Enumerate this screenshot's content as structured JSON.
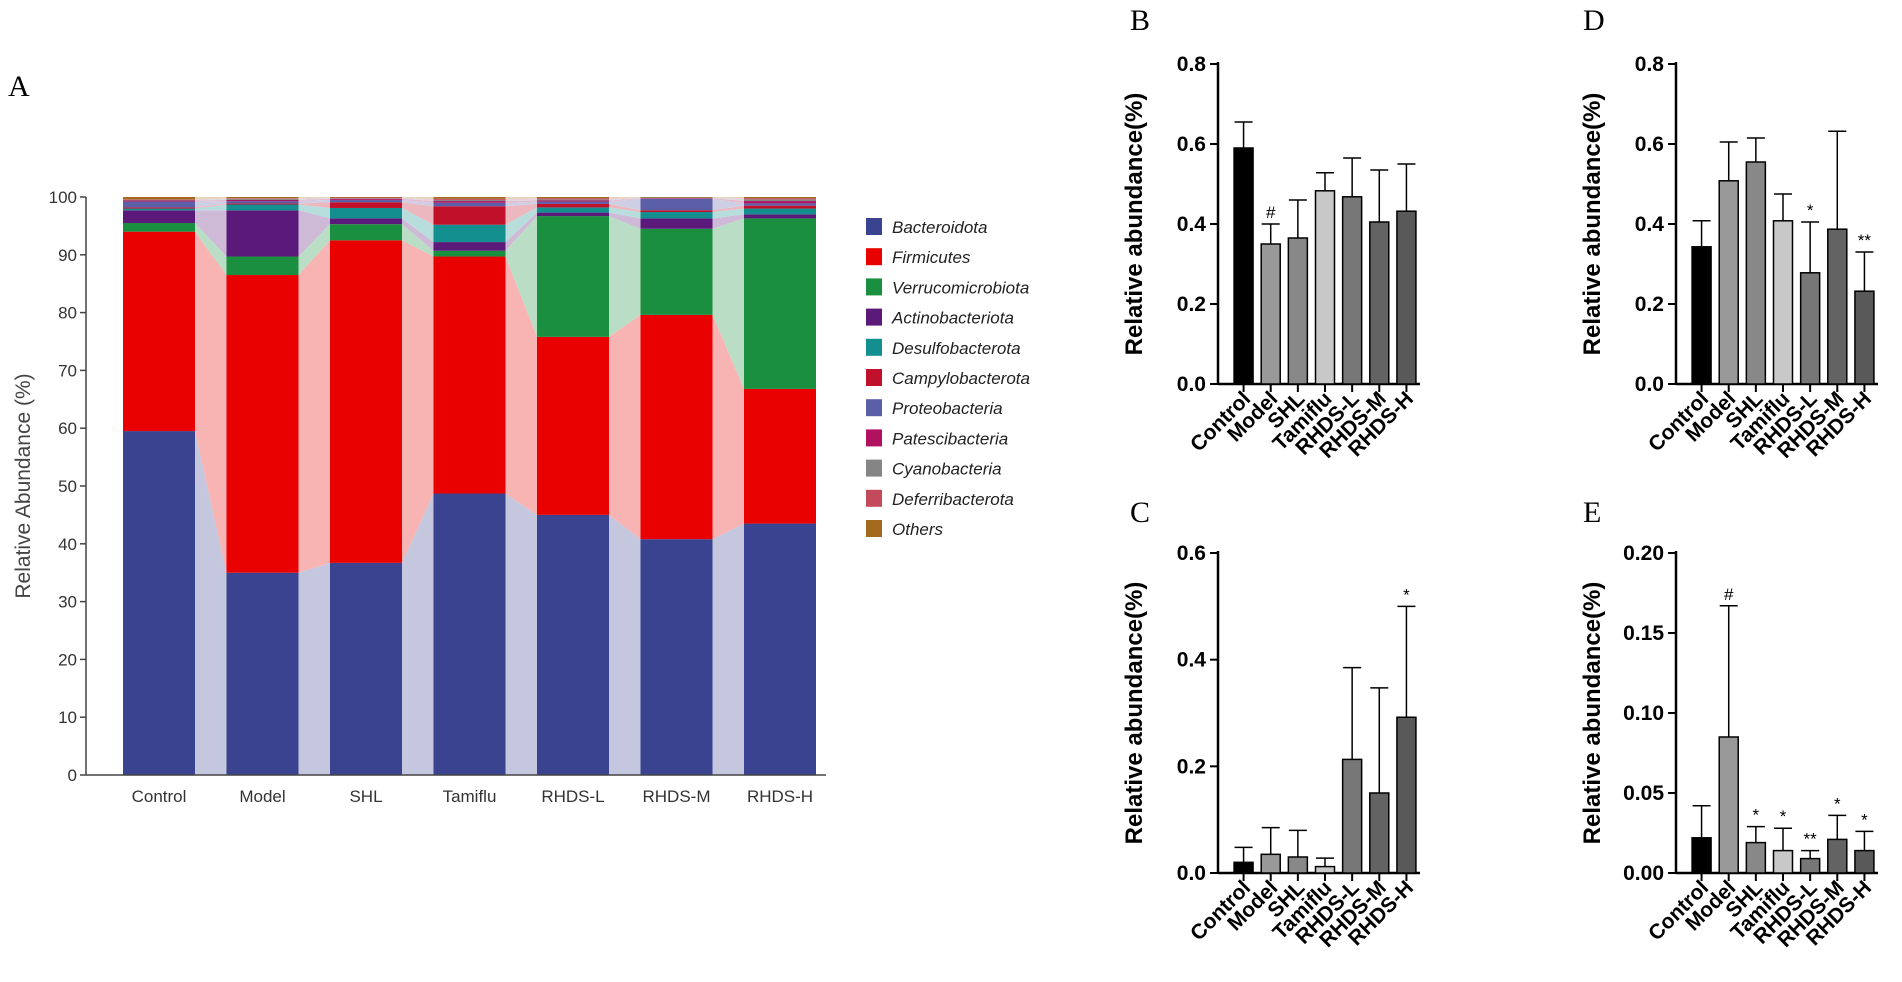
{
  "figure": {
    "panel_labels": [
      "A",
      "B",
      "C",
      "D",
      "E"
    ]
  },
  "chart_data": [
    {
      "id": "A",
      "type": "bar",
      "stacked": true,
      "title": "",
      "xlabel": "",
      "ylabel": "Relative Abundance (%)",
      "ylim": [
        0,
        100
      ],
      "yticks": [
        "0",
        "10",
        "20",
        "30",
        "40",
        "50",
        "60",
        "70",
        "80",
        "90",
        "100"
      ],
      "categories": [
        "Control",
        "Model",
        "SHL",
        "Tamiflu",
        "RHDS-L",
        "RHDS-M",
        "RHDS-H"
      ],
      "legend_position": "right",
      "series": [
        {
          "name": "Bacteroidota",
          "color": "#39438f",
          "values": [
            59.5,
            35.0,
            36.7,
            48.7,
            45.0,
            40.8,
            43.5
          ]
        },
        {
          "name": "Firmicutes",
          "color": "#e90000",
          "values": [
            34.5,
            51.5,
            55.8,
            41.0,
            30.8,
            38.8,
            23.3
          ]
        },
        {
          "name": "Verrucomicrobiota",
          "color": "#1a8f3f",
          "values": [
            1.5,
            3.2,
            2.8,
            1.0,
            20.9,
            14.9,
            29.5
          ]
        },
        {
          "name": "Actinobacteriota",
          "color": "#5b1a7a",
          "values": [
            2.2,
            8.0,
            1.0,
            1.5,
            0.6,
            1.8,
            0.7
          ]
        },
        {
          "name": "Desulfobacterota",
          "color": "#138f8f",
          "values": [
            0.3,
            1.0,
            1.8,
            3.0,
            0.9,
            1.1,
            1.0
          ]
        },
        {
          "name": "Campylobacterota",
          "color": "#c0102a",
          "values": [
            0.2,
            0.2,
            1.0,
            3.2,
            0.6,
            0.3,
            0.5
          ]
        },
        {
          "name": "Proteobacteria",
          "color": "#5b5fa8",
          "values": [
            1.0,
            0.4,
            0.4,
            0.6,
            0.4,
            2.0,
            0.4
          ]
        },
        {
          "name": "Patescibacteria",
          "color": "#b0125f",
          "values": [
            0.2,
            0.2,
            0.2,
            0.3,
            0.2,
            0.1,
            0.4
          ]
        },
        {
          "name": "Cyanobacteria",
          "color": "#858585",
          "values": [
            0.1,
            0.2,
            0.1,
            0.2,
            0.2,
            0.1,
            0.3
          ]
        },
        {
          "name": "Deferribacterota",
          "color": "#c34a5a",
          "values": [
            0.1,
            0.1,
            0.1,
            0.2,
            0.2,
            0.0,
            0.2
          ]
        },
        {
          "name": "Others",
          "color": "#a3691f",
          "values": [
            0.4,
            0.2,
            0.1,
            0.3,
            0.2,
            0.1,
            0.2
          ]
        }
      ]
    },
    {
      "id": "B",
      "type": "bar",
      "title": "",
      "xlabel": "",
      "ylabel": "Relative abundance(%)",
      "ylim": [
        0,
        0.8
      ],
      "yticks": [
        "0.0",
        "0.2",
        "0.4",
        "0.6",
        "0.8"
      ],
      "categories": [
        "Control",
        "Model",
        "SHL",
        "Tamiflu",
        "RHDS-L",
        "RHDS-M",
        "RHDS-H"
      ],
      "values": [
        0.59,
        0.35,
        0.365,
        0.483,
        0.468,
        0.405,
        0.432
      ],
      "errors": [
        0.065,
        0.05,
        0.095,
        0.045,
        0.097,
        0.13,
        0.118
      ],
      "significance": [
        "",
        "#",
        "",
        "",
        "",
        "",
        ""
      ],
      "colors": [
        "#000000",
        "#999999",
        "#888888",
        "#c8c8c8",
        "#777777",
        "#636363",
        "#595959"
      ]
    },
    {
      "id": "C",
      "type": "bar",
      "title": "",
      "xlabel": "",
      "ylabel": "Relative abundance(%)",
      "ylim": [
        0,
        0.6
      ],
      "yticks": [
        "0.0",
        "0.2",
        "0.4",
        "0.6"
      ],
      "categories": [
        "Control",
        "Model",
        "SHL",
        "Tamiflu",
        "RHDS-L",
        "RHDS-M",
        "RHDS-H"
      ],
      "values": [
        0.02,
        0.035,
        0.03,
        0.012,
        0.213,
        0.15,
        0.292
      ],
      "errors": [
        0.028,
        0.05,
        0.05,
        0.016,
        0.172,
        0.197,
        0.208
      ],
      "significance": [
        "",
        "",
        "",
        "",
        "",
        "",
        "*"
      ],
      "colors": [
        "#000000",
        "#999999",
        "#888888",
        "#c8c8c8",
        "#777777",
        "#636363",
        "#595959"
      ]
    },
    {
      "id": "D",
      "type": "bar",
      "title": "",
      "xlabel": "",
      "ylabel": "Relative abundance(%)",
      "ylim": [
        0,
        0.8
      ],
      "yticks": [
        "0.0",
        "0.2",
        "0.4",
        "0.6",
        "0.8"
      ],
      "categories": [
        "Control",
        "Model",
        "SHL",
        "Tamiflu",
        "RHDS-L",
        "RHDS-M",
        "RHDS-H"
      ],
      "values": [
        0.343,
        0.508,
        0.555,
        0.408,
        0.278,
        0.387,
        0.232
      ],
      "errors": [
        0.065,
        0.097,
        0.06,
        0.067,
        0.127,
        0.245,
        0.098
      ],
      "significance": [
        "",
        "",
        "",
        "",
        "*",
        "",
        "**"
      ],
      "colors": [
        "#000000",
        "#999999",
        "#888888",
        "#c8c8c8",
        "#777777",
        "#636363",
        "#595959"
      ]
    },
    {
      "id": "E",
      "type": "bar",
      "title": "",
      "xlabel": "",
      "ylabel": "Relative abundance(%)",
      "ylim": [
        0,
        0.2
      ],
      "yticks": [
        "0.00",
        "0.05",
        "0.10",
        "0.15",
        "0.20"
      ],
      "categories": [
        "Control",
        "Model",
        "SHL",
        "Tamiflu",
        "RHDS-L",
        "RHDS-M",
        "RHDS-H"
      ],
      "values": [
        0.022,
        0.085,
        0.019,
        0.014,
        0.009,
        0.021,
        0.014
      ],
      "errors": [
        0.02,
        0.082,
        0.01,
        0.014,
        0.005,
        0.015,
        0.012
      ],
      "significance": [
        "",
        "#",
        "*",
        "*",
        "**",
        "*",
        "*"
      ],
      "colors": [
        "#000000",
        "#999999",
        "#888888",
        "#c8c8c8",
        "#777777",
        "#636363",
        "#595959"
      ]
    }
  ]
}
